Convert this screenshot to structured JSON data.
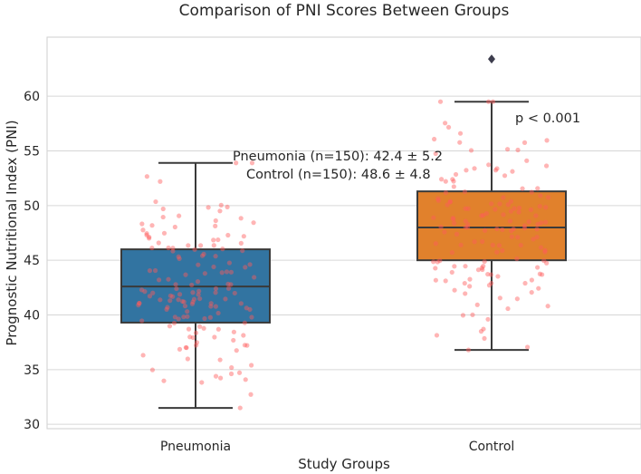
{
  "chart_data": {
    "type": "box",
    "title": "Comparison of PNI Scores Between Groups",
    "xlabel": "Study Groups",
    "ylabel": "Prognostic Nutritional Index (PNI)",
    "ylim": [
      29.6,
      65.4
    ],
    "yticks": [
      30,
      35,
      40,
      45,
      50,
      55,
      60
    ],
    "grid": "horizontal",
    "categories": [
      "Pneumonia",
      "Control"
    ],
    "boxes": [
      {
        "group": "Pneumonia",
        "color": "#3274a1",
        "whisker_low": 31.5,
        "q1": 39.3,
        "median": 42.6,
        "q3": 46.0,
        "whisker_high": 53.9,
        "outliers": []
      },
      {
        "group": "Control",
        "color": "#e1812c",
        "whisker_low": 36.8,
        "q1": 45.0,
        "median": 48.0,
        "q3": 51.3,
        "whisker_high": 59.5,
        "outliers": [
          63.4
        ]
      }
    ],
    "points": {
      "color": "#ff5a5a",
      "count_per_group": 150
    },
    "annotations": [
      {
        "text": "Pneumonia (n=150): 42.4 ± 5.2"
      },
      {
        "text": "Control (n=150): 48.6 ± 4.8"
      },
      {
        "text": "p < 0.001"
      }
    ]
  }
}
